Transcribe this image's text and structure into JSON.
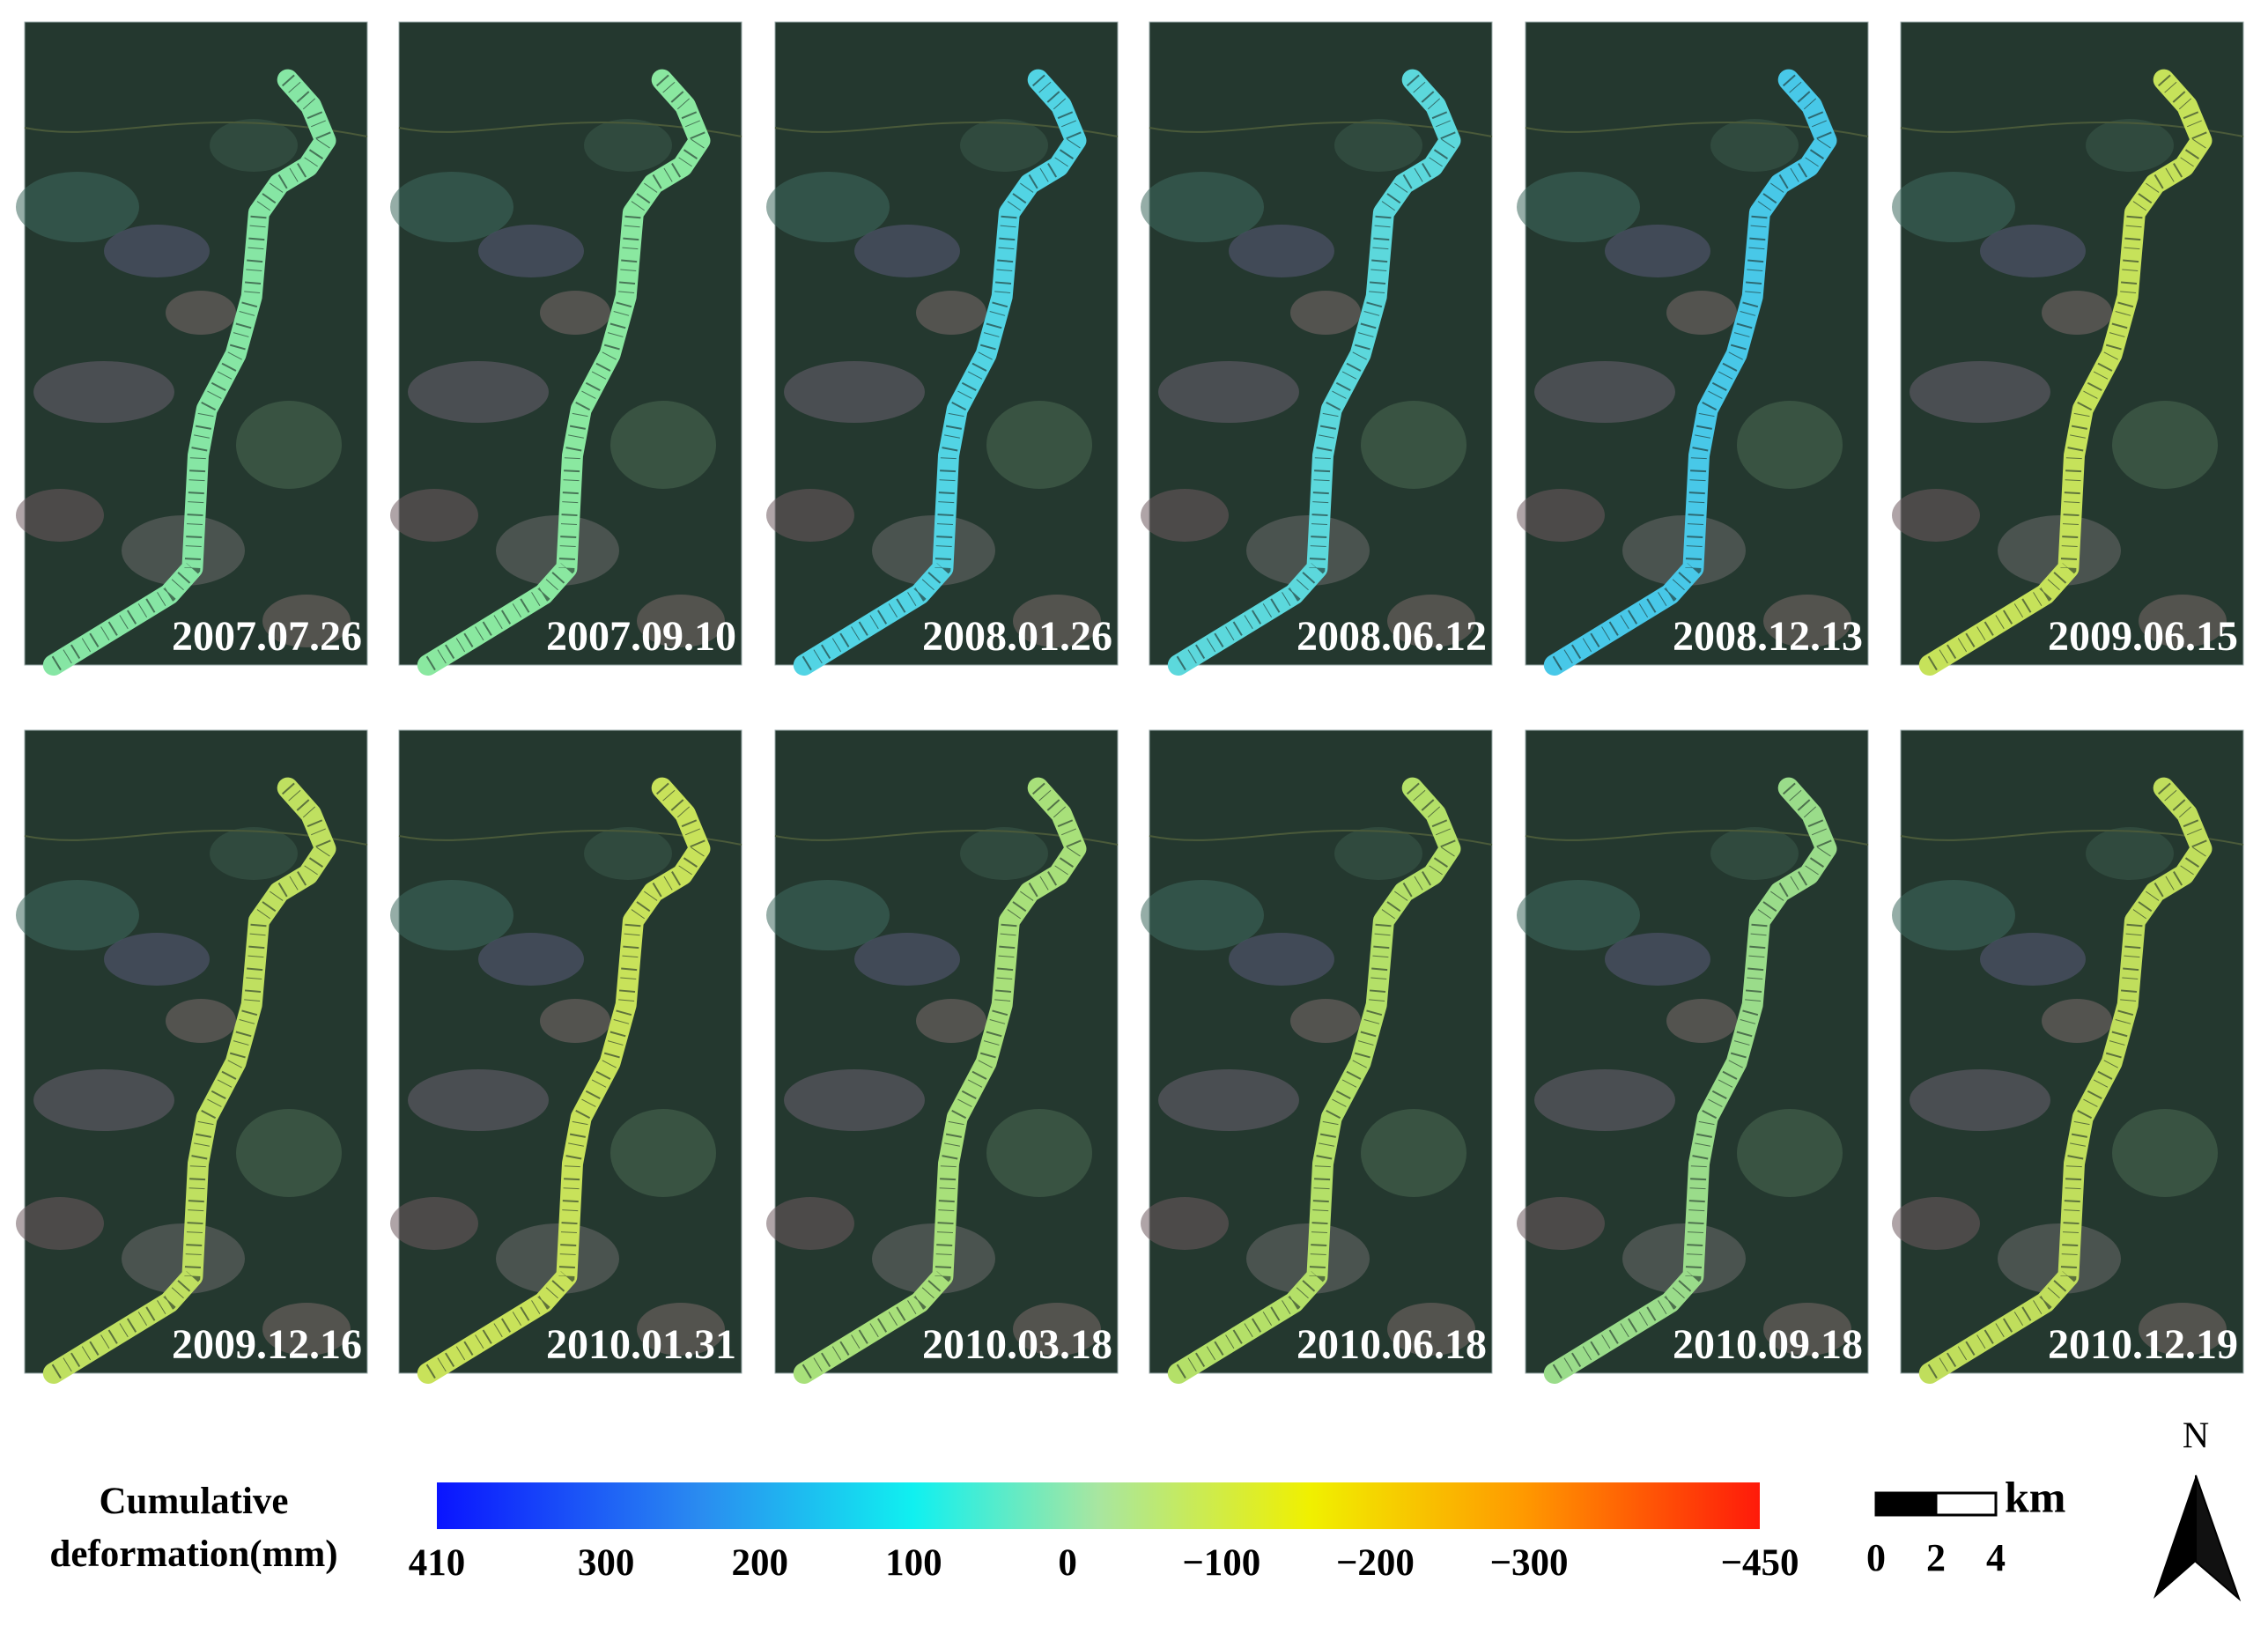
{
  "panels": [
    {
      "date": "2007.07.26"
    },
    {
      "date": "2007.09.10"
    },
    {
      "date": "2008.01.26"
    },
    {
      "date": "2008.06.12"
    },
    {
      "date": "2008.12.13"
    },
    {
      "date": "2009.06.15"
    },
    {
      "date": "2009.12.16"
    },
    {
      "date": "2010.01.31"
    },
    {
      "date": "2010.03.18"
    },
    {
      "date": "2010.06.18"
    },
    {
      "date": "2010.09.18"
    },
    {
      "date": "2010.12.19"
    }
  ],
  "colorbar": {
    "label_lines": [
      "Cumulative",
      "deformation(mm)"
    ],
    "lim": [
      410,
      -450
    ],
    "ticks": [
      410,
      300,
      200,
      100,
      0,
      {
        "value": -100,
        "label": "−100"
      },
      {
        "value": -200,
        "label": "−200"
      },
      {
        "value": -300,
        "label": "−300"
      },
      {
        "value": -450,
        "label": "−450"
      }
    ]
  },
  "scale_bar": {
    "unit": "km",
    "ticks": [
      0,
      2,
      4
    ]
  },
  "north": "N"
}
